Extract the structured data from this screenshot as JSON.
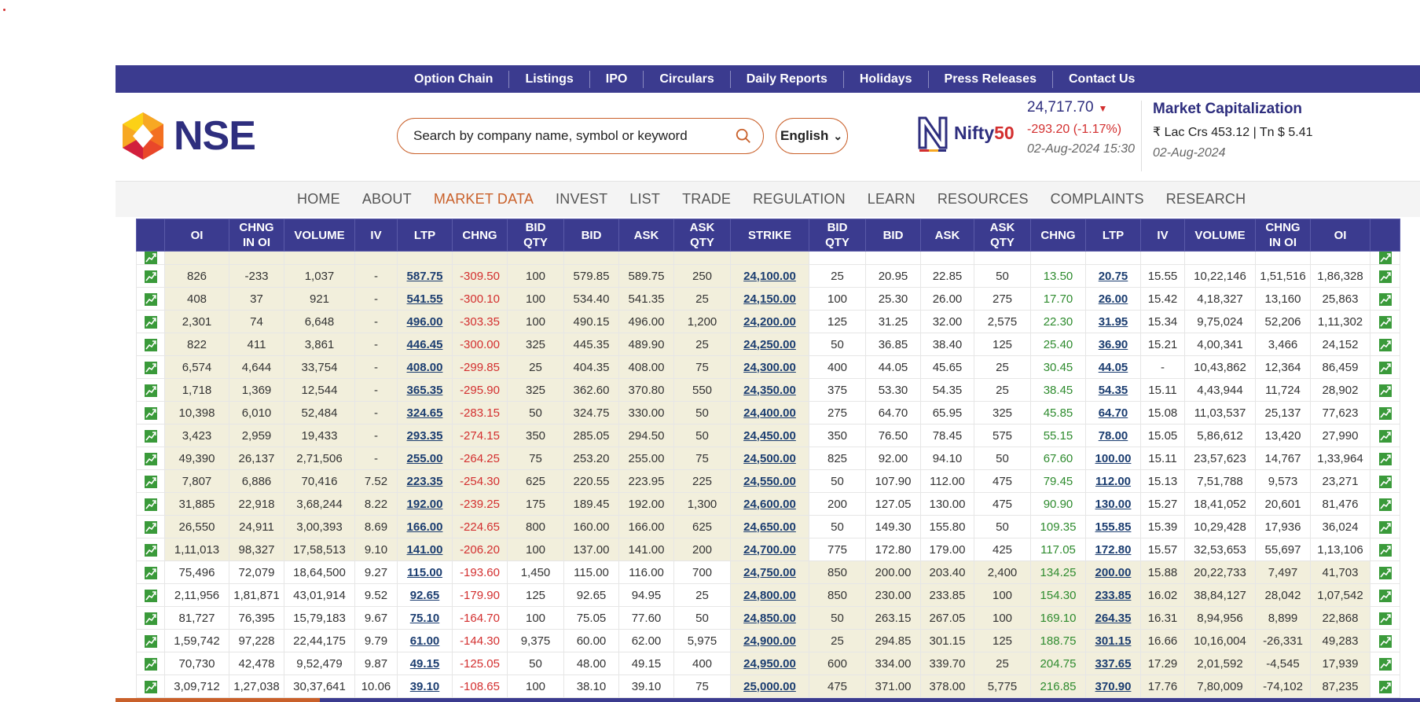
{
  "top_nav": [
    "Option Chain",
    "Listings",
    "IPO",
    "Circulars",
    "Daily Reports",
    "Holidays",
    "Press Releases",
    "Contact Us"
  ],
  "brand": {
    "logo_text": "NSE"
  },
  "search": {
    "placeholder": "Search by company name, symbol or keyword",
    "icon": "search-icon"
  },
  "language": {
    "selected": "English"
  },
  "index": {
    "logo_name": "Nifty",
    "logo_suffix": "50",
    "value": "24,717.70",
    "change": "-293.20 (-1.17%)",
    "timestamp": "02-Aug-2024 15:30",
    "direction": "down"
  },
  "market_cap": {
    "title": "Market Capitalization",
    "value": "₹ Lac Crs 453.12 | Tn $ 5.41",
    "date": "02-Aug-2024"
  },
  "main_nav": [
    "HOME",
    "ABOUT",
    "MARKET DATA",
    "INVEST",
    "LIST",
    "TRADE",
    "REGULATION",
    "LEARN",
    "RESOURCES",
    "COMPLAINTS",
    "RESEARCH"
  ],
  "main_nav_active": "MARKET DATA",
  "colors": {
    "brand_blue": "#3b3b8f",
    "accent_orange": "#c9602a",
    "negative": "#d32f2f",
    "positive": "#2e8b2e",
    "itm_bg": "#f2efdc"
  },
  "table": {
    "headers": [
      "",
      "OI",
      "CHNG IN OI",
      "VOLUME",
      "IV",
      "LTP",
      "CHNG",
      "BID QTY",
      "BID",
      "ASK",
      "ASK QTY",
      "STRIKE",
      "BID QTY",
      "BID",
      "ASK",
      "ASK QTY",
      "CHNG",
      "LTP",
      "IV",
      "VOLUME",
      "CHNG IN OI",
      "OI",
      ""
    ],
    "rows": [
      [
        "826",
        "-233",
        "1,037",
        "-",
        "587.75",
        "-309.50",
        "100",
        "579.85",
        "589.75",
        "250",
        "24,100.00",
        "25",
        "20.95",
        "22.85",
        "50",
        "13.50",
        "20.75",
        "15.55",
        "10,22,146",
        "1,51,516",
        "1,86,328"
      ],
      [
        "408",
        "37",
        "921",
        "-",
        "541.55",
        "-300.10",
        "100",
        "534.40",
        "541.35",
        "25",
        "24,150.00",
        "100",
        "25.30",
        "26.00",
        "275",
        "17.70",
        "26.00",
        "15.42",
        "4,18,327",
        "13,160",
        "25,863"
      ],
      [
        "2,301",
        "74",
        "6,648",
        "-",
        "496.00",
        "-303.35",
        "100",
        "490.15",
        "496.00",
        "1,200",
        "24,200.00",
        "125",
        "31.25",
        "32.00",
        "2,575",
        "22.30",
        "31.95",
        "15.34",
        "9,75,024",
        "52,206",
        "1,11,302"
      ],
      [
        "822",
        "411",
        "3,861",
        "-",
        "446.45",
        "-300.00",
        "325",
        "445.35",
        "489.90",
        "25",
        "24,250.00",
        "50",
        "36.85",
        "38.40",
        "125",
        "25.40",
        "36.90",
        "15.21",
        "4,00,341",
        "3,466",
        "24,152"
      ],
      [
        "6,574",
        "4,644",
        "33,754",
        "-",
        "408.00",
        "-299.85",
        "25",
        "404.35",
        "408.00",
        "75",
        "24,300.00",
        "400",
        "44.05",
        "45.65",
        "25",
        "30.45",
        "44.05",
        "-",
        "10,43,862",
        "12,364",
        "86,459"
      ],
      [
        "1,718",
        "1,369",
        "12,544",
        "-",
        "365.35",
        "-295.90",
        "325",
        "362.60",
        "370.80",
        "550",
        "24,350.00",
        "375",
        "53.30",
        "54.35",
        "25",
        "38.45",
        "54.35",
        "15.11",
        "4,43,944",
        "11,724",
        "28,902"
      ],
      [
        "10,398",
        "6,010",
        "52,484",
        "-",
        "324.65",
        "-283.15",
        "50",
        "324.75",
        "330.00",
        "50",
        "24,400.00",
        "275",
        "64.70",
        "65.95",
        "325",
        "45.85",
        "64.70",
        "15.08",
        "11,03,537",
        "25,137",
        "77,623"
      ],
      [
        "3,423",
        "2,959",
        "19,433",
        "-",
        "293.35",
        "-274.15",
        "350",
        "285.05",
        "294.50",
        "50",
        "24,450.00",
        "350",
        "76.50",
        "78.45",
        "575",
        "55.15",
        "78.00",
        "15.05",
        "5,86,612",
        "13,420",
        "27,990"
      ],
      [
        "49,390",
        "26,137",
        "2,71,506",
        "-",
        "255.00",
        "-264.25",
        "75",
        "253.20",
        "255.00",
        "75",
        "24,500.00",
        "825",
        "92.00",
        "94.10",
        "50",
        "67.60",
        "100.00",
        "15.11",
        "23,57,623",
        "14,767",
        "1,33,964"
      ],
      [
        "7,807",
        "6,886",
        "70,416",
        "7.52",
        "223.35",
        "-254.30",
        "625",
        "220.55",
        "223.95",
        "225",
        "24,550.00",
        "50",
        "107.90",
        "112.00",
        "475",
        "79.45",
        "112.00",
        "15.13",
        "7,51,788",
        "9,573",
        "23,271"
      ],
      [
        "31,885",
        "22,918",
        "3,68,244",
        "8.22",
        "192.00",
        "-239.25",
        "175",
        "189.45",
        "192.00",
        "1,300",
        "24,600.00",
        "200",
        "127.05",
        "130.00",
        "475",
        "90.90",
        "130.00",
        "15.27",
        "18,41,052",
        "20,601",
        "81,476"
      ],
      [
        "26,550",
        "24,911",
        "3,00,393",
        "8.69",
        "166.00",
        "-224.65",
        "800",
        "160.00",
        "166.00",
        "625",
        "24,650.00",
        "50",
        "149.30",
        "155.80",
        "50",
        "109.35",
        "155.85",
        "15.39",
        "10,29,428",
        "17,936",
        "36,024"
      ],
      [
        "1,11,013",
        "98,327",
        "17,58,513",
        "9.10",
        "141.00",
        "-206.20",
        "100",
        "137.00",
        "141.00",
        "200",
        "24,700.00",
        "775",
        "172.80",
        "179.00",
        "425",
        "117.05",
        "172.80",
        "15.57",
        "32,53,653",
        "55,697",
        "1,13,106"
      ],
      [
        "75,496",
        "72,079",
        "18,64,500",
        "9.27",
        "115.00",
        "-193.60",
        "1,450",
        "115.00",
        "116.00",
        "700",
        "24,750.00",
        "850",
        "200.00",
        "203.40",
        "2,400",
        "134.25",
        "200.00",
        "15.88",
        "20,22,733",
        "7,497",
        "41,703"
      ],
      [
        "2,11,956",
        "1,81,871",
        "43,01,914",
        "9.52",
        "92.65",
        "-179.90",
        "125",
        "92.65",
        "94.95",
        "25",
        "24,800.00",
        "850",
        "230.00",
        "233.85",
        "100",
        "154.30",
        "233.85",
        "16.02",
        "38,84,127",
        "28,042",
        "1,07,542"
      ],
      [
        "81,727",
        "76,395",
        "15,79,183",
        "9.67",
        "75.10",
        "-164.70",
        "100",
        "75.05",
        "77.60",
        "50",
        "24,850.00",
        "50",
        "263.15",
        "267.05",
        "100",
        "169.10",
        "264.35",
        "16.31",
        "8,94,956",
        "8,899",
        "22,868"
      ],
      [
        "1,59,742",
        "97,228",
        "22,44,175",
        "9.79",
        "61.00",
        "-144.30",
        "9,375",
        "60.00",
        "62.00",
        "5,975",
        "24,900.00",
        "25",
        "294.85",
        "301.15",
        "125",
        "188.75",
        "301.15",
        "16.66",
        "10,16,004",
        "-26,331",
        "49,283"
      ],
      [
        "70,730",
        "42,478",
        "9,52,479",
        "9.87",
        "49.15",
        "-125.05",
        "50",
        "48.00",
        "49.15",
        "400",
        "24,950.00",
        "600",
        "334.00",
        "339.70",
        "25",
        "204.75",
        "337.65",
        "17.29",
        "2,01,592",
        "-4,545",
        "17,939"
      ],
      [
        "3,09,712",
        "1,27,038",
        "30,37,641",
        "10.06",
        "39.10",
        "-108.65",
        "100",
        "38.10",
        "39.10",
        "75",
        "25,000.00",
        "475",
        "371.00",
        "378.00",
        "5,775",
        "216.85",
        "370.90",
        "17.76",
        "7,80,009",
        "-74,102",
        "87,235"
      ]
    ]
  }
}
